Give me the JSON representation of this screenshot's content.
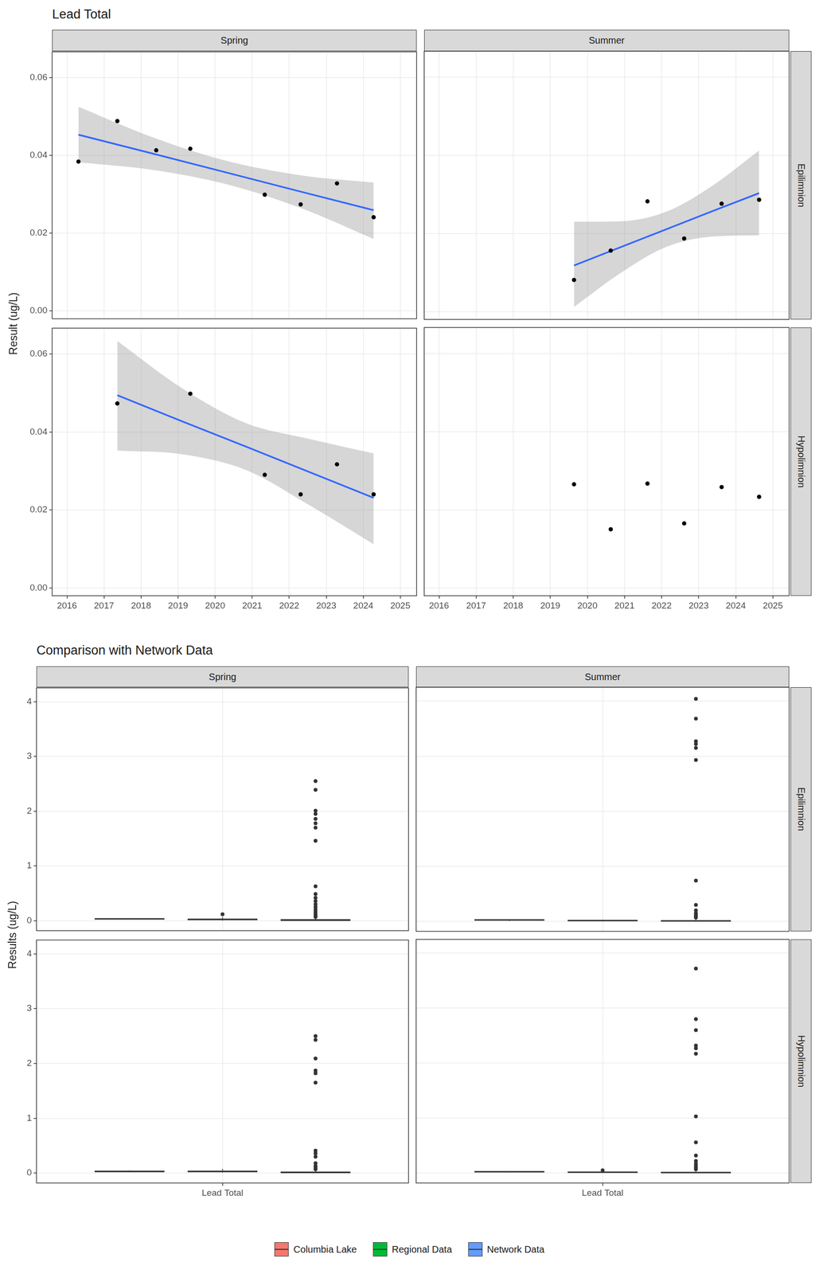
{
  "chart_data": [
    {
      "type": "scatter",
      "title": "Lead Total",
      "y_label": "Result (ug/L)",
      "columns": [
        "Spring",
        "Summer"
      ],
      "rows": [
        "Epilimnion",
        "Hypolimnion"
      ],
      "xlim": [
        2015.6,
        2025.44
      ],
      "xticks": [
        2016,
        2017,
        2018,
        2019,
        2020,
        2021,
        2022,
        2023,
        2024,
        2025
      ],
      "ylim": [
        -0.002,
        0.0666
      ],
      "yticks": [
        {
          "value": 0,
          "label": "0.00"
        },
        0.02,
        0.04,
        0.06
      ],
      "grid": true,
      "color": "#000000",
      "panels": [
        {
          "column": "Spring",
          "row": "Epilimnion",
          "x": [
            2016.31,
            2017.36,
            2018.41,
            2019.33,
            2021.34,
            2022.31,
            2023.29,
            2024.28
          ],
          "values": [
            0.0384,
            0.0488,
            0.0413,
            0.0417,
            0.0299,
            0.0274,
            0.0328,
            0.0241
          ],
          "trend": {
            "type": "line",
            "color": "#3366FF",
            "x": [
              2016.31,
              2018.3,
              2020.3,
              2022.3,
              2024.28
            ],
            "fit": [
              0.0453,
              0.0405,
              0.0356,
              0.0307,
              0.0259
            ],
            "lower": [
              0.0382,
              0.0363,
              0.0326,
              0.0265,
              0.0185
            ],
            "upper": [
              0.0525,
              0.0447,
              0.0386,
              0.0349,
              0.033
            ]
          }
        },
        {
          "column": "Summer",
          "row": "Epilimnion",
          "x": [
            2019.64,
            2020.63,
            2021.62,
            2022.61,
            2023.62,
            2024.63
          ],
          "values": [
            0.0081,
            0.0156,
            0.0282,
            0.0187,
            0.0276,
            0.0286
          ],
          "trend": {
            "type": "line",
            "color": "#3366FF",
            "x": [
              2019.64,
              2020.9,
              2022.14,
              2023.4,
              2024.63
            ],
            "fit": [
              0.0118,
              0.0165,
              0.0211,
              0.0258,
              0.0303
            ],
            "lower": [
              0.0012,
              0.0099,
              0.0166,
              0.0192,
              0.0195
            ],
            "upper": [
              0.023,
              0.0231,
              0.0256,
              0.0324,
              0.0412
            ]
          }
        },
        {
          "column": "Spring",
          "row": "Hypolimnion",
          "x": [
            2017.36,
            2019.33,
            2021.34,
            2022.31,
            2023.29,
            2024.28
          ],
          "values": [
            0.0473,
            0.0498,
            0.029,
            0.024,
            0.0317,
            0.024
          ],
          "trend": {
            "type": "line",
            "color": "#3366FF",
            "x": [
              2017.36,
              2019.09,
              2020.82,
              2022.55,
              2024.28
            ],
            "fit": [
              0.0494,
              0.0428,
              0.0363,
              0.0297,
              0.0231
            ],
            "lower": [
              0.0352,
              0.0343,
              0.0303,
              0.0212,
              0.0112
            ],
            "upper": [
              0.0633,
              0.0513,
              0.0423,
              0.0382,
              0.0345
            ]
          }
        },
        {
          "column": "Summer",
          "row": "Hypolimnion",
          "x": [
            2019.64,
            2020.63,
            2021.62,
            2022.61,
            2023.62,
            2024.63
          ],
          "values": [
            0.0265,
            0.015,
            0.0267,
            0.0165,
            0.0258,
            0.0233
          ]
        }
      ]
    },
    {
      "type": "boxplot",
      "title": "Comparison with Network Data",
      "y_label": "Results (ug/L)",
      "categories": [
        "Lead Total"
      ],
      "columns": [
        "Spring",
        "Summer"
      ],
      "rows": [
        "Epilimnion",
        "Hypolimnion"
      ],
      "ylim": [
        -0.18,
        4.25
      ],
      "yticks": [
        0,
        1,
        2,
        3,
        4
      ],
      "grid": true,
      "legend": "bottom",
      "series": [
        {
          "name": "Columbia Lake",
          "color": "#F8766D"
        },
        {
          "name": "Regional Data",
          "color": "#00BA38"
        },
        {
          "name": "Network Data",
          "color": "#619CFF"
        }
      ],
      "panels": [
        {
          "column": "Spring",
          "row": "Epilimnion",
          "boxes": [
            {
              "whisker_low": 0.024,
              "q1": 0.028,
              "median": 0.035,
              "q3": 0.041,
              "whisker_high": 0.048,
              "outliers": []
            },
            {
              "whisker_low": 0.003,
              "q1": 0.015,
              "median": 0.025,
              "q3": 0.04,
              "whisker_high": 0.07,
              "outliers": [
                0.12
              ]
            },
            {
              "whisker_low": 0.001,
              "q1": 0.005,
              "median": 0.012,
              "q3": 0.03,
              "whisker_high": 0.06,
              "outliers": [
                2.55,
                2.39,
                2.01,
                1.95,
                1.86,
                1.78,
                1.7,
                1.46,
                0.63,
                0.49,
                0.42,
                0.36,
                0.3,
                0.25,
                0.2,
                0.16,
                0.12,
                0.09,
                0.07
              ]
            }
          ]
        },
        {
          "column": "Summer",
          "row": "Epilimnion",
          "boxes": [
            {
              "whisker_low": 0.008,
              "q1": 0.017,
              "median": 0.027,
              "q3": 0.028,
              "whisker_high": 0.029,
              "outliers": []
            },
            {
              "whisker_low": 0.005,
              "q1": 0.01,
              "median": 0.015,
              "q3": 0.022,
              "whisker_high": 0.03,
              "outliers": []
            },
            {
              "whisker_low": 0.001,
              "q1": 0.004,
              "median": 0.01,
              "q3": 0.02,
              "whisker_high": 0.045,
              "outliers": [
                4.04,
                3.68,
                3.27,
                3.22,
                3.15,
                2.93,
                0.74,
                0.3,
                0.2,
                0.15,
                0.12,
                0.09,
                0.07
              ]
            }
          ]
        },
        {
          "column": "Spring",
          "row": "Hypolimnion",
          "boxes": [
            {
              "whisker_low": 0.024,
              "q1": 0.025,
              "median": 0.03,
              "q3": 0.045,
              "whisker_high": 0.05,
              "outliers": []
            },
            {
              "whisker_low": 0.01,
              "q1": 0.02,
              "median": 0.03,
              "q3": 0.045,
              "whisker_high": 0.08,
              "outliers": []
            },
            {
              "whisker_low": 0.001,
              "q1": 0.006,
              "median": 0.013,
              "q3": 0.03,
              "whisker_high": 0.06,
              "outliers": [
                2.5,
                2.43,
                2.09,
                1.87,
                1.82,
                1.65,
                0.41,
                0.36,
                0.3,
                0.18,
                0.13,
                0.1,
                0.07
              ]
            }
          ]
        },
        {
          "column": "Summer",
          "row": "Hypolimnion",
          "boxes": [
            {
              "whisker_low": 0.015,
              "q1": 0.018,
              "median": 0.024,
              "q3": 0.026,
              "whisker_high": 0.027,
              "outliers": []
            },
            {
              "whisker_low": 0.003,
              "q1": 0.01,
              "median": 0.016,
              "q3": 0.02,
              "whisker_high": 0.03,
              "outliers": [
                0.05
              ]
            },
            {
              "whisker_low": 0.001,
              "q1": 0.004,
              "median": 0.01,
              "q3": 0.02,
              "whisker_high": 0.045,
              "outliers": [
                3.72,
                2.8,
                2.6,
                2.32,
                2.27,
                2.17,
                1.03,
                0.56,
                0.32,
                0.22,
                0.17,
                0.13,
                0.1,
                0.07
              ]
            }
          ]
        }
      ]
    }
  ]
}
